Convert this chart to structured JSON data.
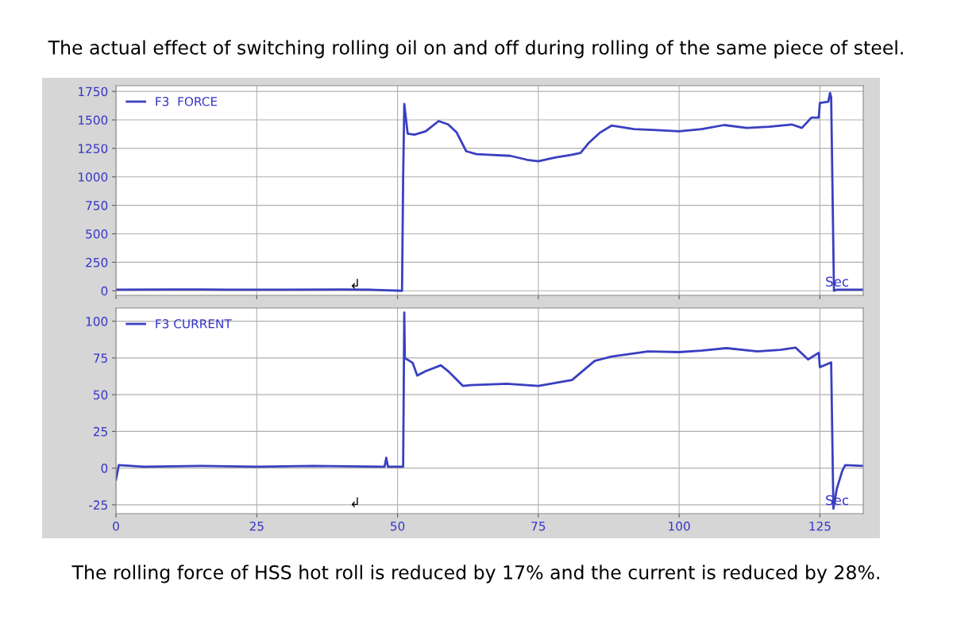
{
  "chart_data": [
    {
      "type": "line",
      "title": "The actual effect of switching rolling oil on and off during rolling of the same piece of steel.",
      "xlim": [
        0,
        132.7
      ],
      "ylim": [
        -40,
        1800
      ],
      "yticks": [
        0,
        250,
        500,
        750,
        1000,
        1250,
        1500,
        1750
      ],
      "xticks": [
        0,
        25,
        50,
        75,
        100,
        125
      ],
      "tick_labels": "y",
      "grid": true,
      "legend": "top left",
      "series": [
        {
          "name": "F3  FORCE",
          "color": "#3a3fc0",
          "x": [
            0,
            10,
            20,
            30,
            40,
            45,
            48,
            50.8,
            51,
            51.2,
            51.8,
            53,
            55,
            57.3,
            59,
            60.5,
            62.2,
            64,
            66,
            70,
            73,
            75,
            78,
            81,
            82.5,
            84,
            86,
            88,
            92,
            96,
            100,
            104,
            108,
            112,
            116,
            120,
            121.8,
            123.5,
            124.8,
            125,
            126.5,
            126.8,
            127,
            127.5,
            128,
            132.5
          ],
          "values": [
            10,
            12,
            10,
            10,
            12,
            10,
            5,
            0,
            1000,
            1640,
            1380,
            1370,
            1400,
            1490,
            1460,
            1390,
            1225,
            1200,
            1195,
            1185,
            1150,
            1137,
            1170,
            1195,
            1210,
            1300,
            1390,
            1450,
            1420,
            1410,
            1400,
            1420,
            1455,
            1430,
            1440,
            1460,
            1430,
            1520,
            1520,
            1650,
            1660,
            1737,
            1700,
            0,
            10,
            10
          ]
        }
      ],
      "annotations": [
        "↲",
        "Sec"
      ]
    },
    {
      "type": "line",
      "xlim": [
        0,
        132.7
      ],
      "ylim": [
        -31,
        109
      ],
      "yticks": [
        -25,
        0,
        25,
        50,
        75,
        100
      ],
      "xticks": [
        0,
        25,
        50,
        75,
        100,
        125
      ],
      "grid": true,
      "legend": "top left",
      "series": [
        {
          "name": "F3 CURRENT",
          "color": "#3a3fc0",
          "x": [
            0,
            0.5,
            5,
            15,
            25,
            35,
            47.7,
            48,
            48.3,
            51,
            51.2,
            51.3,
            52.7,
            53.5,
            55,
            57.7,
            59,
            61.6,
            63,
            69.4,
            75,
            78,
            81,
            85,
            88,
            94.5,
            100,
            104,
            108.4,
            113.9,
            118,
            120.7,
            122.9,
            124.8,
            125,
            127,
            127.4,
            128,
            129,
            129.5,
            132.5
          ],
          "values": [
            -8,
            2,
            1,
            1.5,
            1,
            1.5,
            1,
            7,
            1,
            1,
            106,
            75,
            71.6,
            63,
            66,
            70,
            66,
            56,
            56.5,
            57.5,
            56,
            58,
            60,
            73,
            76,
            79.5,
            79,
            80,
            81.7,
            79.5,
            80.5,
            82,
            74,
            78.5,
            68.7,
            72,
            -27.6,
            -14,
            -1.6,
            2,
            1.5
          ]
        }
      ],
      "annotations": [
        "↲",
        "Sec",
        "The rolling force of HSS hot roll is reduced by 17% and the current is reduced by 28%."
      ]
    }
  ]
}
